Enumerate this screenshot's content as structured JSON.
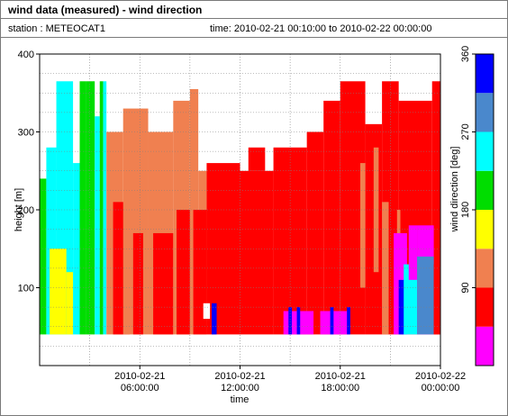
{
  "title": "wind data (measured) - wind direction",
  "station_text": "station : METEOCAT1",
  "time_text": "time: 2010-02-21 00:10:00 to 2010-02-22 00:00:00",
  "chart_data": {
    "type": "heatmap",
    "xlabel": "time",
    "ylabel": "height [m]",
    "ylim": [
      0,
      400
    ],
    "yticks": [
      100,
      200,
      300,
      400
    ],
    "xlim_hours": [
      0,
      24
    ],
    "xticks": [
      {
        "hour": 6,
        "line1": "2010-02-21",
        "line2": "06:00:00"
      },
      {
        "hour": 12,
        "line1": "2010-02-21",
        "line2": "12:00:00"
      },
      {
        "hour": 18,
        "line1": "2010-02-21",
        "line2": "18:00:00"
      },
      {
        "hour": 24,
        "line1": "2010-02-22",
        "line2": "00:00:00"
      }
    ],
    "grid": true,
    "colorbar": {
      "label": "wind direction [deg]",
      "range": [
        0,
        360
      ],
      "ticks": [
        90,
        180,
        270,
        360
      ],
      "bands": [
        {
          "from": 0,
          "to": 45,
          "color": "#ff00ff"
        },
        {
          "from": 45,
          "to": 90,
          "color": "#ff0000"
        },
        {
          "from": 90,
          "to": 135,
          "color": "#f08050"
        },
        {
          "from": 135,
          "to": 180,
          "color": "#ffff00"
        },
        {
          "from": 180,
          "to": 225,
          "color": "#00dd00"
        },
        {
          "from": 225,
          "to": 270,
          "color": "#00ffff"
        },
        {
          "from": 270,
          "to": 315,
          "color": "#4a88cc"
        },
        {
          "from": 315,
          "to": 360,
          "color": "#0000ff"
        }
      ]
    },
    "regions": [
      {
        "t0": 0.0,
        "t1": 0.4,
        "h0": 40,
        "h1": 240,
        "color": "#00dd00"
      },
      {
        "t0": 0.4,
        "t1": 1.0,
        "h0": 40,
        "h1": 280,
        "color": "#00ffff"
      },
      {
        "t0": 1.0,
        "t1": 2.0,
        "h0": 40,
        "h1": 365,
        "color": "#00ffff"
      },
      {
        "t0": 0.6,
        "t1": 1.6,
        "h0": 40,
        "h1": 150,
        "color": "#ffff00"
      },
      {
        "t0": 1.6,
        "t1": 2.0,
        "h0": 40,
        "h1": 120,
        "color": "#ffff00"
      },
      {
        "t0": 2.0,
        "t1": 2.4,
        "h0": 40,
        "h1": 260,
        "color": "#00ffff"
      },
      {
        "t0": 2.4,
        "t1": 2.8,
        "h0": 40,
        "h1": 365,
        "color": "#00dd00"
      },
      {
        "t0": 2.8,
        "t1": 3.3,
        "h0": 40,
        "h1": 365,
        "color": "#00dd00"
      },
      {
        "t0": 3.3,
        "t1": 3.6,
        "h0": 40,
        "h1": 320,
        "color": "#00ffff"
      },
      {
        "t0": 3.6,
        "t1": 3.8,
        "h0": 40,
        "h1": 365,
        "color": "#00dd00"
      },
      {
        "t0": 3.8,
        "t1": 4.0,
        "h0": 40,
        "h1": 365,
        "color": "#00ffff"
      },
      {
        "t0": 4.0,
        "t1": 5.0,
        "h0": 40,
        "h1": 300,
        "color": "#f08050"
      },
      {
        "t0": 4.4,
        "t1": 5.4,
        "h0": 40,
        "h1": 210,
        "color": "#ff0000"
      },
      {
        "t0": 5.0,
        "t1": 6.5,
        "h0": 40,
        "h1": 330,
        "color": "#f08050"
      },
      {
        "t0": 5.6,
        "t1": 6.2,
        "h0": 40,
        "h1": 170,
        "color": "#ff0000"
      },
      {
        "t0": 6.5,
        "t1": 8.0,
        "h0": 40,
        "h1": 300,
        "color": "#f08050"
      },
      {
        "t0": 6.8,
        "t1": 8.0,
        "h0": 40,
        "h1": 170,
        "color": "#ff0000"
      },
      {
        "t0": 8.0,
        "t1": 9.0,
        "h0": 40,
        "h1": 340,
        "color": "#f08050"
      },
      {
        "t0": 8.2,
        "t1": 9.0,
        "h0": 40,
        "h1": 200,
        "color": "#ff0000"
      },
      {
        "t0": 9.0,
        "t1": 9.5,
        "h0": 40,
        "h1": 355,
        "color": "#f08050"
      },
      {
        "t0": 9.5,
        "t1": 10.0,
        "h0": 40,
        "h1": 250,
        "color": "#f08050"
      },
      {
        "t0": 9.2,
        "t1": 10.0,
        "h0": 40,
        "h1": 200,
        "color": "#ff0000"
      },
      {
        "t0": 10.0,
        "t1": 12.0,
        "h0": 40,
        "h1": 260,
        "color": "#ff0000"
      },
      {
        "t0": 12.0,
        "t1": 14.0,
        "h0": 40,
        "h1": 250,
        "color": "#ff0000"
      },
      {
        "t0": 12.5,
        "t1": 13.5,
        "h0": 250,
        "h1": 280,
        "color": "#ff0000"
      },
      {
        "t0": 14.0,
        "t1": 16.0,
        "h0": 40,
        "h1": 280,
        "color": "#ff0000"
      },
      {
        "t0": 16.0,
        "t1": 17.0,
        "h0": 40,
        "h1": 300,
        "color": "#ff0000"
      },
      {
        "t0": 17.0,
        "t1": 18.0,
        "h0": 40,
        "h1": 340,
        "color": "#ff0000"
      },
      {
        "t0": 18.0,
        "t1": 19.5,
        "h0": 40,
        "h1": 365,
        "color": "#ff0000"
      },
      {
        "t0": 19.5,
        "t1": 20.5,
        "h0": 40,
        "h1": 310,
        "color": "#ff0000"
      },
      {
        "t0": 20.5,
        "t1": 21.5,
        "h0": 40,
        "h1": 365,
        "color": "#ff0000"
      },
      {
        "t0": 21.5,
        "t1": 23.5,
        "h0": 40,
        "h1": 340,
        "color": "#ff0000"
      },
      {
        "t0": 23.5,
        "t1": 24.0,
        "h0": 40,
        "h1": 365,
        "color": "#ff0000"
      },
      {
        "t0": 19.2,
        "t1": 19.5,
        "h0": 100,
        "h1": 260,
        "color": "#f08050"
      },
      {
        "t0": 20.0,
        "t1": 20.3,
        "h0": 120,
        "h1": 280,
        "color": "#f08050"
      },
      {
        "t0": 20.5,
        "t1": 20.9,
        "h0": 40,
        "h1": 210,
        "color": "#f08050"
      },
      {
        "t0": 21.4,
        "t1": 21.6,
        "h0": 40,
        "h1": 200,
        "color": "#f08050"
      },
      {
        "t0": 21.2,
        "t1": 22.0,
        "h0": 40,
        "h1": 170,
        "color": "#ff00ff"
      },
      {
        "t0": 21.5,
        "t1": 22.0,
        "h0": 40,
        "h1": 110,
        "color": "#0000ff"
      },
      {
        "t0": 21.8,
        "t1": 22.6,
        "h0": 40,
        "h1": 130,
        "color": "#00ffff"
      },
      {
        "t0": 22.1,
        "t1": 22.6,
        "h0": 110,
        "h1": 180,
        "color": "#ff00ff"
      },
      {
        "t0": 22.6,
        "t1": 23.6,
        "h0": 40,
        "h1": 180,
        "color": "#ff00ff"
      },
      {
        "t0": 22.6,
        "t1": 23.6,
        "h0": 40,
        "h1": 140,
        "color": "#4a88cc"
      },
      {
        "t0": 23.6,
        "t1": 24.0,
        "h0": 40,
        "h1": 130,
        "color": "#ff0000"
      },
      {
        "t0": 14.6,
        "t1": 16.4,
        "h0": 40,
        "h1": 70,
        "color": "#ff00ff"
      },
      {
        "t0": 14.9,
        "t1": 15.1,
        "h0": 40,
        "h1": 75,
        "color": "#0000ff"
      },
      {
        "t0": 15.4,
        "t1": 15.6,
        "h0": 40,
        "h1": 75,
        "color": "#0000ff"
      },
      {
        "t0": 16.8,
        "t1": 18.6,
        "h0": 40,
        "h1": 70,
        "color": "#ff00ff"
      },
      {
        "t0": 17.4,
        "t1": 17.6,
        "h0": 40,
        "h1": 75,
        "color": "#0000ff"
      },
      {
        "t0": 18.4,
        "t1": 18.6,
        "h0": 40,
        "h1": 75,
        "color": "#0000ff"
      },
      {
        "t0": 10.3,
        "t1": 10.6,
        "h0": 40,
        "h1": 80,
        "color": "#0000ff"
      },
      {
        "t0": 9.8,
        "t1": 10.2,
        "h0": 60,
        "h1": 80,
        "color": "#ffffff"
      }
    ]
  }
}
